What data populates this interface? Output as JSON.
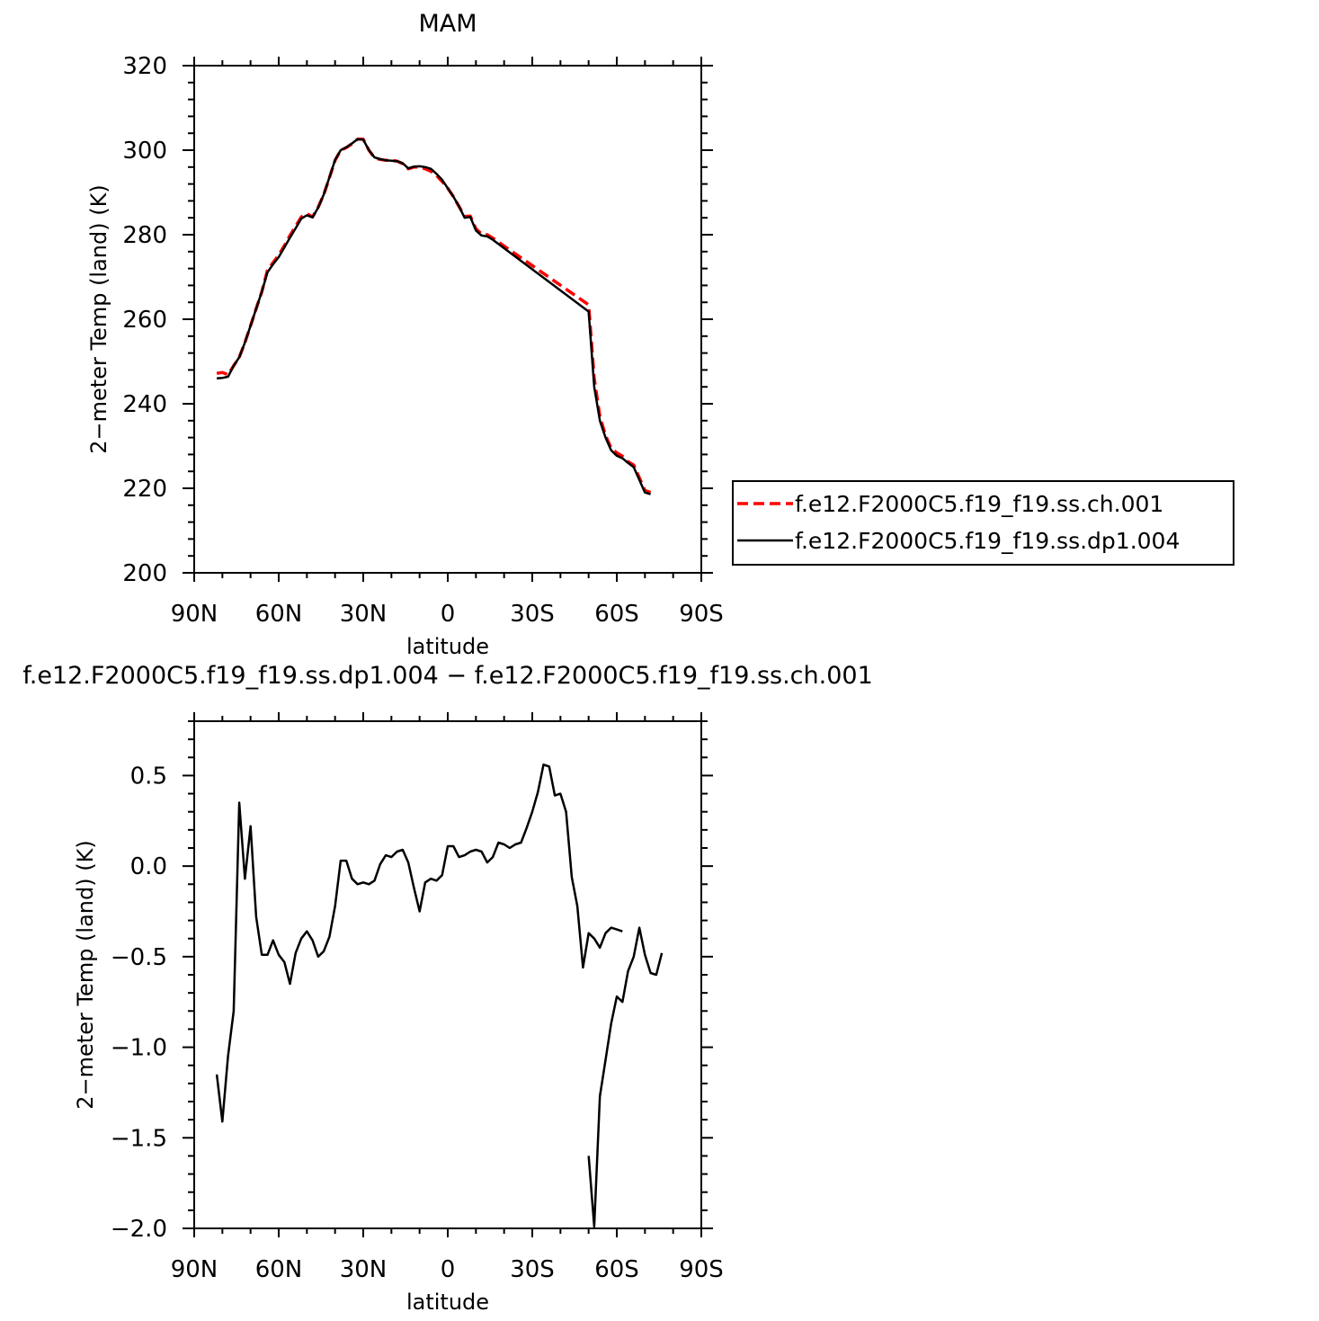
{
  "chart_data": [
    {
      "type": "line",
      "title": "MAM",
      "xlabel": "latitude",
      "ylabel": "2−meter Temp (land) (K)",
      "xlim": [
        90,
        -90
      ],
      "ylim": [
        200,
        320
      ],
      "xticks": [
        90,
        60,
        30,
        0,
        -30,
        -60,
        -90
      ],
      "xtick_labels": [
        "90N",
        "60N",
        "30N",
        "0",
        "30S",
        "60S",
        "90S"
      ],
      "yticks": [
        200,
        220,
        240,
        260,
        280,
        300,
        320
      ],
      "ytick_labels": [
        "200",
        "220",
        "240",
        "260",
        "280",
        "300",
        "320"
      ],
      "legend_position": "right",
      "series": [
        {
          "name": "f.e12.F2000C5.f19_f19.ss.ch.001",
          "color": "#ff0000",
          "dash": "dashed",
          "points": [
            [
              82,
              247.2
            ],
            [
              80,
              247.4
            ],
            [
              78,
              246.9
            ],
            [
              76,
              249
            ],
            [
              74,
              251
            ],
            [
              72,
              254.5
            ],
            [
              70,
              258.5
            ],
            [
              68,
              262.5
            ],
            [
              66,
              266.5
            ],
            [
              64,
              271.6
            ],
            [
              62,
              273.4
            ],
            [
              60,
              275.2
            ],
            [
              58,
              277.4
            ],
            [
              56,
              279.8
            ],
            [
              54,
              282
            ],
            [
              52,
              284.2
            ],
            [
              50,
              285
            ],
            [
              48,
              284.2
            ],
            [
              46,
              286.5
            ],
            [
              44,
              289.5
            ],
            [
              42,
              293.5
            ],
            [
              40,
              297.6
            ],
            [
              38,
              300
            ],
            [
              36,
              300.6
            ],
            [
              34,
              301.5
            ],
            [
              32,
              302.6
            ],
            [
              30,
              302.6
            ],
            [
              28,
              300
            ],
            [
              26,
              298.2
            ],
            [
              24,
              297.8
            ],
            [
              22,
              297.6
            ],
            [
              20,
              297.6
            ],
            [
              18,
              297.4
            ],
            [
              16,
              296.8
            ],
            [
              14,
              295.6
            ],
            [
              12,
              296
            ],
            [
              10,
              296
            ],
            [
              8,
              295.6
            ],
            [
              6,
              295
            ],
            [
              4,
              294
            ],
            [
              2,
              292.6
            ],
            [
              0,
              291
            ],
            [
              -2,
              289
            ],
            [
              -4,
              286.7
            ],
            [
              -6,
              284.3
            ],
            [
              -8,
              284.4
            ],
            [
              -10,
              281.4
            ],
            [
              -12,
              280.2
            ],
            [
              -14,
              280
            ],
            [
              -16,
              279.2
            ],
            [
              -50,
              263.4
            ],
            [
              -52,
              246
            ],
            [
              -54,
              237
            ],
            [
              -56,
              232.5
            ],
            [
              -58,
              229.5
            ],
            [
              -60,
              228.4
            ],
            [
              -62,
              227.6
            ],
            [
              -64,
              226.3
            ],
            [
              -66,
              225.5
            ],
            [
              -68,
              222.5
            ],
            [
              -70,
              219.5
            ],
            [
              -72,
              219
            ]
          ]
        },
        {
          "name": "f.e12.F2000C5.f19_f19.ss.dp1.004",
          "color": "#000000",
          "dash": "solid",
          "points": [
            [
              82,
              246
            ],
            [
              80,
              246.1
            ],
            [
              78,
              246.4
            ],
            [
              76,
              249
            ],
            [
              74,
              251
            ],
            [
              72,
              254.5
            ],
            [
              70,
              258.5
            ],
            [
              68,
              262.5
            ],
            [
              66,
              266.5
            ],
            [
              64,
              271.1
            ],
            [
              62,
              273
            ],
            [
              60,
              274.7
            ],
            [
              58,
              277
            ],
            [
              56,
              279.3
            ],
            [
              54,
              281.5
            ],
            [
              52,
              283.8
            ],
            [
              50,
              284.6
            ],
            [
              48,
              284.1
            ],
            [
              46,
              286.4
            ],
            [
              44,
              289.5
            ],
            [
              42,
              293.6
            ],
            [
              40,
              297.7
            ],
            [
              38,
              300
            ],
            [
              36,
              300.7
            ],
            [
              34,
              301.6
            ],
            [
              32,
              302.6
            ],
            [
              30,
              302.5
            ],
            [
              28,
              300
            ],
            [
              26,
              298.3
            ],
            [
              24,
              297.9
            ],
            [
              22,
              297.6
            ],
            [
              20,
              297.5
            ],
            [
              18,
              297.4
            ],
            [
              16,
              296.9
            ],
            [
              14,
              295.7
            ],
            [
              12,
              296.1
            ],
            [
              10,
              296.2
            ],
            [
              8,
              296
            ],
            [
              6,
              295.6
            ],
            [
              4,
              294.4
            ],
            [
              2,
              293
            ],
            [
              0,
              291
            ],
            [
              -2,
              289
            ],
            [
              -4,
              286.7
            ],
            [
              -6,
              284
            ],
            [
              -8,
              284.2
            ],
            [
              -10,
              281
            ],
            [
              -12,
              279.8
            ],
            [
              -14,
              279.6
            ],
            [
              -16,
              278.8
            ],
            [
              -50,
              261.8
            ],
            [
              -52,
              244
            ],
            [
              -54,
              236
            ],
            [
              -56,
              232
            ],
            [
              -58,
              229
            ],
            [
              -60,
              227.7
            ],
            [
              -62,
              227.1
            ],
            [
              -64,
              226
            ],
            [
              -66,
              225
            ],
            [
              -68,
              222
            ],
            [
              -70,
              219
            ],
            [
              -72,
              218.6
            ]
          ]
        }
      ]
    },
    {
      "type": "line",
      "title": "f.e12.F2000C5.f19_f19.ss.dp1.004 − f.e12.F2000C5.f19_f19.ss.ch.001",
      "xlabel": "latitude",
      "ylabel": "2−meter Temp (land) (K)",
      "xlim": [
        90,
        -90
      ],
      "ylim": [
        -2.0,
        0.8
      ],
      "xticks": [
        90,
        60,
        30,
        0,
        -30,
        -60,
        -90
      ],
      "xtick_labels": [
        "90N",
        "60N",
        "30N",
        "0",
        "30S",
        "60S",
        "90S"
      ],
      "yticks": [
        -2.0,
        -1.5,
        -1.0,
        -0.5,
        0.0,
        0.5
      ],
      "ytick_labels": [
        "−2.0",
        "−1.5",
        "−1.0",
        "−0.5",
        "0.0",
        "0.5"
      ],
      "series": [
        {
          "color": "#000000",
          "dash": "solid",
          "points": [
            [
              82,
              -1.15
            ],
            [
              80,
              -1.41
            ],
            [
              78,
              -1.05
            ],
            [
              76,
              -0.8
            ],
            [
              74,
              0.35
            ],
            [
              72,
              -0.07
            ],
            [
              70,
              0.22
            ],
            [
              68,
              -0.28
            ],
            [
              66,
              -0.49
            ],
            [
              64,
              -0.49
            ],
            [
              62,
              -0.41
            ],
            [
              60,
              -0.49
            ],
            [
              58,
              -0.53
            ],
            [
              56,
              -0.65
            ],
            [
              54,
              -0.48
            ],
            [
              52,
              -0.4
            ],
            [
              50,
              -0.36
            ],
            [
              48,
              -0.41
            ],
            [
              46,
              -0.5
            ],
            [
              44,
              -0.47
            ],
            [
              42,
              -0.39
            ],
            [
              40,
              -0.22
            ],
            [
              38,
              0.03
            ],
            [
              36,
              0.03
            ],
            [
              34,
              -0.07
            ],
            [
              32,
              -0.1
            ],
            [
              30,
              -0.09
            ],
            [
              28,
              -0.1
            ],
            [
              26,
              -0.08
            ],
            [
              24,
              0.01
            ],
            [
              22,
              0.06
            ],
            [
              20,
              0.05
            ],
            [
              18,
              0.08
            ],
            [
              16,
              0.09
            ],
            [
              14,
              0.02
            ],
            [
              12,
              -0.12
            ],
            [
              10,
              -0.25
            ],
            [
              8,
              -0.09
            ],
            [
              6,
              -0.07
            ],
            [
              4,
              -0.08
            ],
            [
              2,
              -0.05
            ],
            [
              0,
              0.11
            ],
            [
              -2,
              0.11
            ],
            [
              -4,
              0.05
            ],
            [
              -6,
              0.06
            ],
            [
              -8,
              0.08
            ],
            [
              -10,
              0.09
            ],
            [
              -12,
              0.08
            ],
            [
              -14,
              0.02
            ],
            [
              -16,
              0.05
            ],
            [
              -18,
              0.13
            ],
            [
              -20,
              0.12
            ],
            [
              -22,
              0.1
            ],
            [
              -24,
              0.12
            ],
            [
              -26,
              0.13
            ],
            [
              -28,
              0.21
            ],
            [
              -30,
              0.3
            ],
            [
              -32,
              0.41
            ],
            [
              -34,
              0.56
            ],
            [
              -36,
              0.55
            ],
            [
              -38,
              0.39
            ],
            [
              -40,
              0.4
            ],
            [
              -42,
              0.3
            ],
            [
              -44,
              -0.06
            ],
            [
              -46,
              -0.22
            ],
            [
              -48,
              -0.56
            ],
            [
              -50,
              -0.37
            ],
            [
              -52,
              -0.4
            ],
            [
              -54,
              -0.45
            ],
            [
              -56,
              -0.37
            ],
            [
              -58,
              -0.34
            ],
            [
              -60,
              -0.35
            ],
            [
              -62,
              -0.36
            ],
            null,
            [
              -50,
              -1.6
            ],
            [
              -52,
              -1.99
            ],
            [
              -54,
              -1.27
            ],
            [
              -56,
              -1.07
            ],
            [
              -58,
              -0.87
            ],
            [
              -60,
              -0.72
            ],
            [
              -62,
              -0.75
            ],
            [
              -64,
              -0.58
            ],
            [
              -66,
              -0.5
            ],
            [
              -68,
              -0.34
            ],
            [
              -70,
              -0.49
            ],
            [
              -72,
              -0.59
            ],
            [
              -74,
              -0.6
            ],
            [
              -76,
              -0.48
            ]
          ]
        }
      ]
    }
  ]
}
